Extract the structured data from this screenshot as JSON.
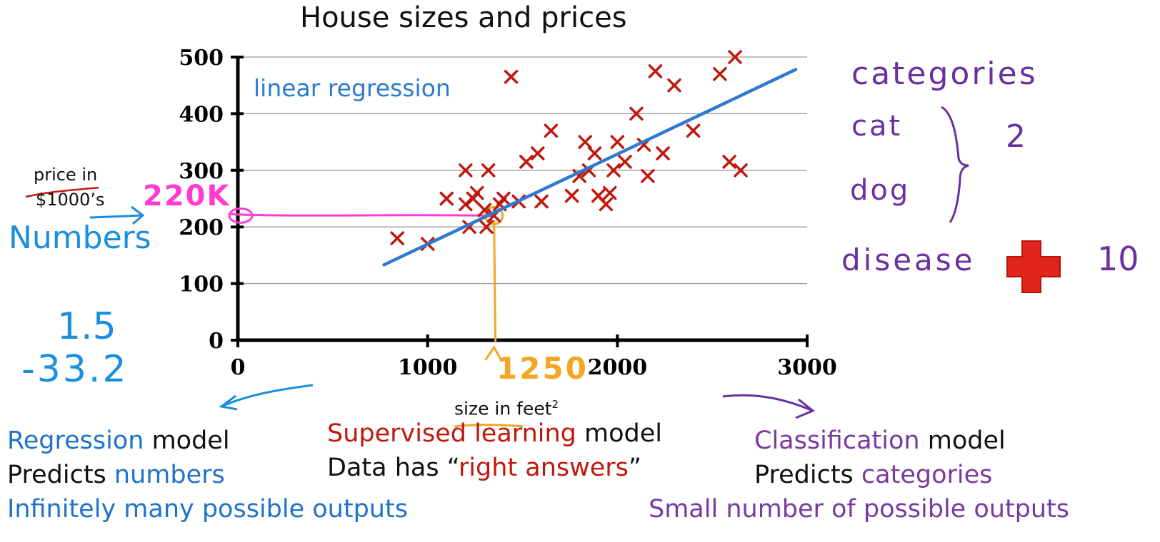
{
  "title": "House sizes and prices",
  "chart_data": {
    "type": "scatter",
    "title": "House sizes and prices",
    "xlabel": "size in feet",
    "xlabel_sup": "2",
    "ylabel": "price in $1000’s",
    "ylabel_line1": "price in",
    "ylabel_line2": "$1000’s",
    "xlim": [
      0,
      3000
    ],
    "ylim": [
      0,
      500
    ],
    "xticks": [
      0,
      1000,
      2000,
      3000
    ],
    "yticks": [
      0,
      100,
      200,
      300,
      400,
      500
    ],
    "grid": true,
    "marker": "x",
    "marker_color": "#c0180e",
    "points": [
      [
        840,
        180
      ],
      [
        1000,
        170
      ],
      [
        1100,
        250
      ],
      [
        1200,
        300
      ],
      [
        1200,
        240
      ],
      [
        1220,
        200
      ],
      [
        1240,
        250
      ],
      [
        1260,
        260
      ],
      [
        1300,
        230
      ],
      [
        1320,
        300
      ],
      [
        1350,
        220
      ],
      [
        1380,
        240
      ],
      [
        1400,
        250
      ],
      [
        1440,
        465
      ],
      [
        1480,
        245
      ],
      [
        1520,
        315
      ],
      [
        1580,
        330
      ],
      [
        1600,
        245
      ],
      [
        1650,
        370
      ],
      [
        1760,
        255
      ],
      [
        1800,
        290
      ],
      [
        1830,
        350
      ],
      [
        1850,
        300
      ],
      [
        1880,
        330
      ],
      [
        1900,
        255
      ],
      [
        1940,
        240
      ],
      [
        1960,
        260
      ],
      [
        1980,
        300
      ],
      [
        2000,
        350
      ],
      [
        2040,
        315
      ],
      [
        2100,
        400
      ],
      [
        2140,
        345
      ],
      [
        2160,
        290
      ],
      [
        2200,
        475
      ],
      [
        2240,
        330
      ],
      [
        2300,
        450
      ],
      [
        2400,
        370
      ],
      [
        2540,
        470
      ],
      [
        2590,
        315
      ],
      [
        2620,
        500
      ],
      [
        2650,
        300
      ],
      [
        1310,
        200
      ]
    ],
    "regression": {
      "label": "linear regression",
      "color": "#2e7ad1",
      "x": [
        770,
        2940
      ],
      "y": [
        133,
        478
      ]
    }
  },
  "annotations": {
    "y_value": "220K",
    "x_value": "1250",
    "numbers": "Numbers",
    "numbers_examples": [
      "1.5",
      "-33.2"
    ],
    "categories": "categories",
    "cat": "cat",
    "dog": "dog",
    "count_pets": "2",
    "disease": "disease",
    "count_disease": "10"
  },
  "bottom": {
    "regression": {
      "line1_a": "Regression",
      "line1_b": " model",
      "line2_a": "Predicts ",
      "line2_b": "numbers",
      "line3": "Infinitely many possible outputs"
    },
    "supervised": {
      "line1_a": "Supervised learning",
      "line1_b": " model",
      "line2_a": "Data has “",
      "line2_b": "right answers",
      "line2_c": "”"
    },
    "classification": {
      "line1_a": "Classification",
      "line1_b": " model",
      "line2_a": "Predicts ",
      "line2_b": "categories",
      "line3": "Small number of possible outputs"
    }
  },
  "colors": {
    "pink": "#ff3cd2",
    "orange": "#f5a623",
    "blue_hand": "#1a8fe0",
    "purple_hand": "#6a2fa0",
    "cross": "#e3241c"
  }
}
